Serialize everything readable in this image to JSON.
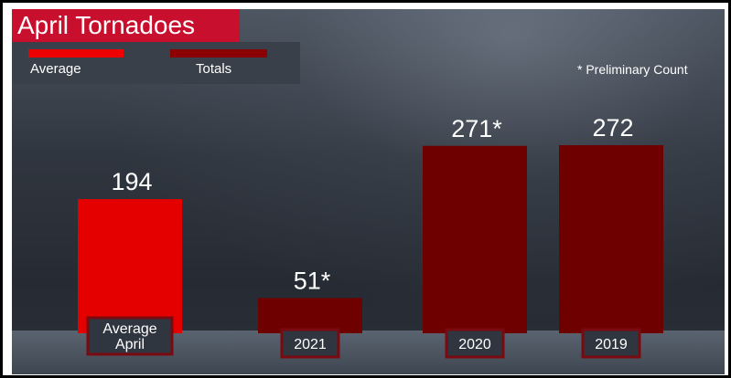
{
  "title": "April Tornadoes",
  "legend": [
    {
      "label": "Average",
      "color": "#ee0000"
    },
    {
      "label": "Totals",
      "color": "#8b0000"
    }
  ],
  "note": "* Preliminary Count",
  "colors": {
    "average": "#e50000",
    "totals": "#6e0000",
    "label_border": "#7a0a10",
    "label_bg": "#2f3640"
  },
  "chart_data": {
    "type": "bar",
    "title": "April Tornadoes",
    "categories": [
      "Average April",
      "2021",
      "2020",
      "2019"
    ],
    "values": [
      194,
      51,
      271,
      272
    ],
    "data_labels": [
      "194",
      "51*",
      "271*",
      "272"
    ],
    "series_type": [
      "Average",
      "Totals",
      "Totals",
      "Totals"
    ],
    "ylim": [
      0,
      272
    ],
    "legend_position": "top-left",
    "grid": false,
    "xlabel": "",
    "ylabel": ""
  }
}
